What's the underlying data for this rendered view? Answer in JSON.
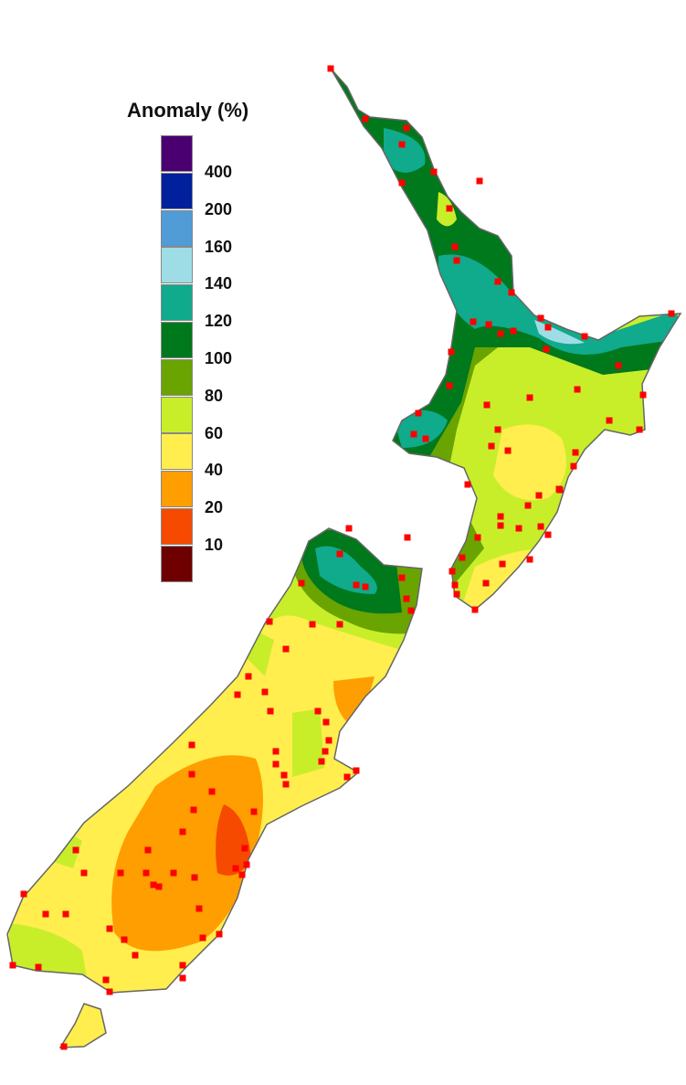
{
  "legend": {
    "title": "Anomaly (%)",
    "colors": [
      "#4a0070",
      "#00209c",
      "#519bd6",
      "#9edde5",
      "#10aa8c",
      "#00781c",
      "#6aa400",
      "#c8ee2a",
      "#ffee4d",
      "#ff9e00",
      "#f54a00",
      "#6e0000"
    ],
    "labels": [
      "400",
      "200",
      "160",
      "140",
      "120",
      "100",
      "80",
      "60",
      "40",
      "20",
      "10"
    ]
  },
  "map": {
    "stations_color": "#ff0000",
    "coastline_color": "#666666",
    "islands": [
      "north-island",
      "south-island",
      "stewart-island"
    ]
  }
}
